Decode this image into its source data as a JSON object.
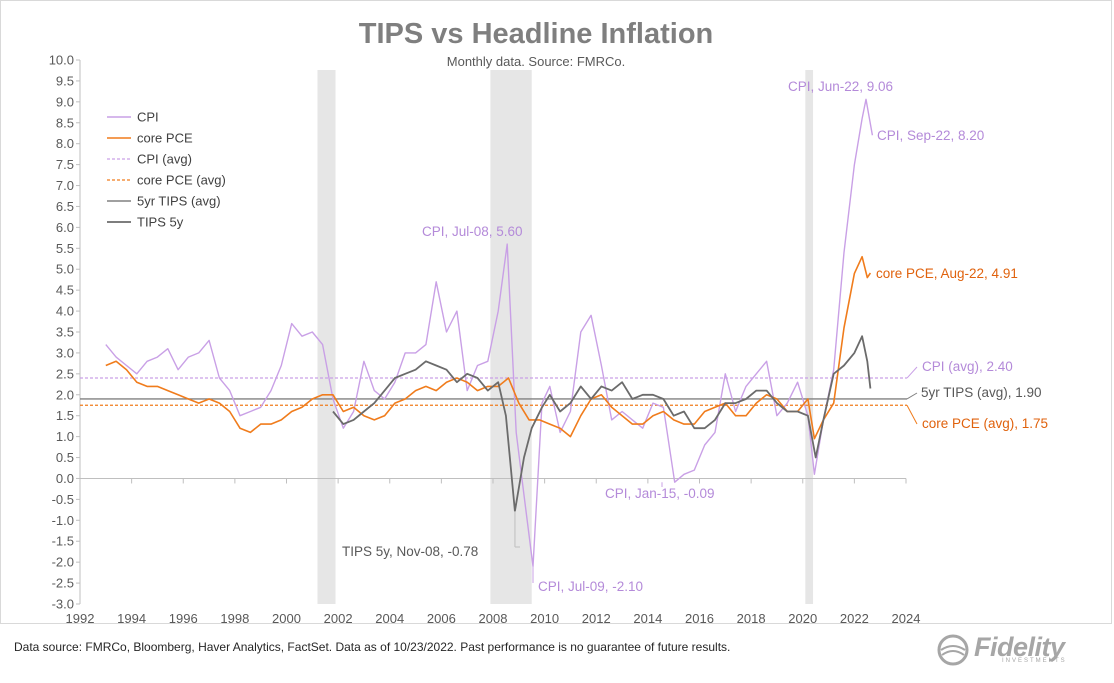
{
  "title": "TIPS vs Headline Inflation",
  "subtitle": "Monthly data. Source: FMRCo.",
  "source_note": "Data source: FMRCo, Bloomberg, Haver Analytics, FactSet. Data as of 10/23/2022. Past performance is no guarantee of future results.",
  "logo": {
    "text": "Fidelity",
    "subtext": "INVESTMENTS"
  },
  "colors": {
    "cpi": "#c9a0e6",
    "core_pce": "#f07c1c",
    "tips_avg": "#808080",
    "tips_5y": "#6b6b6b",
    "recession": "#e6e6e6",
    "axis": "#bfbfbf"
  },
  "chart_data": {
    "type": "line",
    "xlim": [
      1992,
      2024
    ],
    "ylim": [
      -3.0,
      10.0
    ],
    "x_ticks": [
      "1992",
      "1994",
      "1996",
      "1998",
      "2000",
      "2002",
      "2004",
      "2006",
      "2008",
      "2010",
      "2012",
      "2014",
      "2016",
      "2018",
      "2020",
      "2022",
      "2024"
    ],
    "y_ticks": [
      "10.0",
      "9.5",
      "9.0",
      "8.5",
      "8.0",
      "7.5",
      "7.0",
      "6.5",
      "6.0",
      "5.5",
      "5.0",
      "4.5",
      "4.0",
      "3.5",
      "3.0",
      "2.5",
      "2.0",
      "1.5",
      "1.0",
      "0.5",
      "0.0",
      "-0.5",
      "-1.0",
      "-1.5",
      "-2.0",
      "-2.5",
      "-3.0"
    ],
    "grid": false,
    "legend_position": "top-left",
    "recession_periods": [
      [
        2001.2,
        2001.9
      ],
      [
        2007.9,
        2009.5
      ],
      [
        2020.1,
        2020.4
      ]
    ],
    "legend": [
      "CPI",
      "core PCE",
      "CPI (avg)",
      "core PCE (avg)",
      "5yr TIPS (avg)",
      "TIPS 5y"
    ],
    "series": [
      {
        "name": "CPI",
        "x": [
          1993.0,
          1993.4,
          1993.8,
          1994.2,
          1994.6,
          1995.0,
          1995.4,
          1995.8,
          1996.2,
          1996.6,
          1997.0,
          1997.4,
          1997.8,
          1998.2,
          1998.6,
          1999.0,
          1999.4,
          1999.8,
          2000.2,
          2000.6,
          2001.0,
          2001.4,
          2001.8,
          2002.2,
          2002.6,
          2003.0,
          2003.4,
          2003.8,
          2004.2,
          2004.6,
          2005.0,
          2005.4,
          2005.8,
          2006.2,
          2006.6,
          2007.0,
          2007.4,
          2007.8,
          2008.2,
          2008.55,
          2008.9,
          2009.2,
          2009.55,
          2009.9,
          2010.2,
          2010.6,
          2011.0,
          2011.4,
          2011.8,
          2012.2,
          2012.6,
          2013.0,
          2013.4,
          2013.8,
          2014.2,
          2014.6,
          2015.04,
          2015.4,
          2015.8,
          2016.2,
          2016.6,
          2017.0,
          2017.4,
          2017.8,
          2018.2,
          2018.6,
          2019.0,
          2019.4,
          2019.8,
          2020.2,
          2020.45,
          2020.8,
          2021.2,
          2021.6,
          2022.0,
          2022.3,
          2022.45,
          2022.7
        ],
        "values": [
          3.2,
          2.9,
          2.7,
          2.5,
          2.8,
          2.9,
          3.1,
          2.6,
          2.9,
          3.0,
          3.3,
          2.4,
          2.1,
          1.5,
          1.6,
          1.7,
          2.1,
          2.7,
          3.7,
          3.4,
          3.5,
          3.2,
          1.9,
          1.2,
          1.6,
          2.8,
          2.1,
          1.9,
          2.3,
          3.0,
          3.0,
          3.2,
          4.7,
          3.5,
          4.0,
          2.1,
          2.7,
          2.8,
          4.0,
          5.6,
          1.1,
          -0.4,
          -2.1,
          1.8,
          2.2,
          1.1,
          1.6,
          3.5,
          3.9,
          2.7,
          1.4,
          1.6,
          1.4,
          1.2,
          1.8,
          1.7,
          -0.09,
          0.1,
          0.2,
          0.8,
          1.1,
          2.5,
          1.6,
          2.2,
          2.5,
          2.8,
          1.5,
          1.8,
          2.3,
          1.5,
          0.1,
          1.4,
          2.6,
          5.4,
          7.5,
          8.6,
          9.06,
          8.2
        ]
      },
      {
        "name": "core PCE",
        "x": [
          1993.0,
          1993.4,
          1993.8,
          1994.2,
          1994.6,
          1995.0,
          1995.4,
          1995.8,
          1996.2,
          1996.6,
          1997.0,
          1997.4,
          1997.8,
          1998.2,
          1998.6,
          1999.0,
          1999.4,
          1999.8,
          2000.2,
          2000.6,
          2001.0,
          2001.4,
          2001.8,
          2002.2,
          2002.6,
          2003.0,
          2003.4,
          2003.8,
          2004.2,
          2004.6,
          2005.0,
          2005.4,
          2005.8,
          2006.2,
          2006.6,
          2007.0,
          2007.4,
          2007.8,
          2008.2,
          2008.6,
          2009.0,
          2009.4,
          2009.8,
          2010.2,
          2010.6,
          2011.0,
          2011.4,
          2011.8,
          2012.2,
          2012.6,
          2013.0,
          2013.4,
          2013.8,
          2014.2,
          2014.6,
          2015.0,
          2015.4,
          2015.8,
          2016.2,
          2016.6,
          2017.0,
          2017.4,
          2017.8,
          2018.2,
          2018.6,
          2019.0,
          2019.4,
          2019.8,
          2020.2,
          2020.45,
          2020.8,
          2021.2,
          2021.6,
          2022.0,
          2022.3,
          2022.5,
          2022.62
        ],
        "values": [
          2.7,
          2.8,
          2.6,
          2.3,
          2.2,
          2.2,
          2.1,
          2.0,
          1.9,
          1.8,
          1.9,
          1.8,
          1.6,
          1.2,
          1.1,
          1.3,
          1.3,
          1.4,
          1.6,
          1.7,
          1.9,
          2.0,
          2.0,
          1.6,
          1.7,
          1.5,
          1.4,
          1.5,
          1.8,
          1.9,
          2.1,
          2.2,
          2.1,
          2.3,
          2.4,
          2.3,
          2.1,
          2.2,
          2.2,
          2.4,
          1.8,
          1.4,
          1.4,
          1.3,
          1.2,
          1.0,
          1.5,
          1.9,
          2.0,
          1.7,
          1.5,
          1.3,
          1.3,
          1.5,
          1.6,
          1.4,
          1.3,
          1.3,
          1.6,
          1.7,
          1.8,
          1.5,
          1.5,
          1.8,
          2.0,
          1.9,
          1.6,
          1.6,
          1.9,
          0.95,
          1.4,
          1.8,
          3.6,
          4.9,
          5.3,
          4.8,
          4.91
        ]
      },
      {
        "name": "TIPS 5y",
        "x": [
          2001.8,
          2002.2,
          2002.6,
          2003.0,
          2003.4,
          2003.8,
          2004.2,
          2004.6,
          2005.0,
          2005.4,
          2005.8,
          2006.2,
          2006.6,
          2007.0,
          2007.4,
          2007.8,
          2008.2,
          2008.5,
          2008.85,
          2009.2,
          2009.5,
          2009.9,
          2010.2,
          2010.6,
          2011.0,
          2011.4,
          2011.8,
          2012.2,
          2012.6,
          2013.0,
          2013.4,
          2013.8,
          2014.2,
          2014.6,
          2015.0,
          2015.4,
          2015.8,
          2016.2,
          2016.6,
          2017.0,
          2017.4,
          2017.8,
          2018.2,
          2018.6,
          2019.0,
          2019.4,
          2019.8,
          2020.2,
          2020.5,
          2020.8,
          2021.2,
          2021.6,
          2022.0,
          2022.3,
          2022.5,
          2022.62
        ],
        "values": [
          1.6,
          1.3,
          1.4,
          1.6,
          1.8,
          2.1,
          2.4,
          2.5,
          2.6,
          2.8,
          2.7,
          2.6,
          2.3,
          2.5,
          2.4,
          2.1,
          2.3,
          1.5,
          -0.78,
          0.5,
          1.2,
          1.7,
          2.0,
          1.6,
          1.8,
          2.2,
          1.9,
          2.2,
          2.1,
          2.3,
          1.9,
          2.0,
          2.0,
          1.9,
          1.5,
          1.6,
          1.2,
          1.2,
          1.4,
          1.8,
          1.8,
          1.9,
          2.1,
          2.1,
          1.8,
          1.6,
          1.6,
          1.5,
          0.5,
          1.4,
          2.5,
          2.7,
          3.0,
          3.4,
          2.8,
          2.15
        ]
      },
      {
        "name": "CPI (avg)",
        "constant": 2.4
      },
      {
        "name": "core PCE (avg)",
        "constant": 1.75
      },
      {
        "name": "5yr TIPS (avg)",
        "constant": 1.9
      }
    ],
    "annotations": [
      {
        "text": "CPI, Jun-22, 9.06",
        "series": "CPI"
      },
      {
        "text": "CPI, Sep-22, 8.20",
        "series": "CPI"
      },
      {
        "text": "CPI, Jul-08, 5.60",
        "series": "CPI"
      },
      {
        "text": "core PCE, Aug-22, 4.91",
        "series": "core PCE"
      },
      {
        "text": "CPI (avg), 2.40",
        "series": "CPI (avg)"
      },
      {
        "text": "5yr TIPS (avg), 1.90",
        "series": "5yr TIPS (avg)"
      },
      {
        "text": "core PCE (avg), 1.75",
        "series": "core PCE (avg)"
      },
      {
        "text": "CPI, Jan-15, -0.09",
        "series": "CPI"
      },
      {
        "text": "TIPS 5y, Nov-08, -0.78",
        "series": "TIPS 5y"
      },
      {
        "text": "CPI, Jul-09, -2.10",
        "series": "CPI"
      }
    ]
  }
}
